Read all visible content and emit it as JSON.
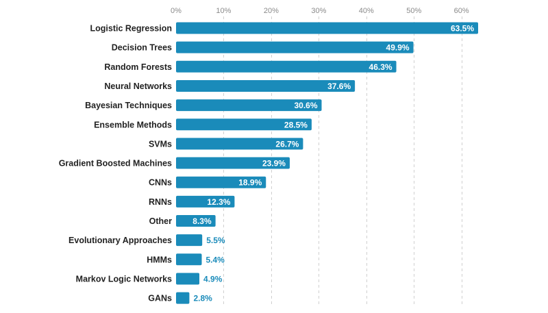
{
  "chart_data": {
    "type": "bar",
    "orientation": "horizontal",
    "title": "",
    "xlabel": "",
    "ylabel": "",
    "xlim": [
      0,
      63.5
    ],
    "grid": true,
    "tick_values": [
      0,
      10,
      20,
      30,
      40,
      50,
      60
    ],
    "tick_labels": [
      "0%",
      "10%",
      "20%",
      "30%",
      "40%",
      "50%",
      "60%"
    ],
    "categories": [
      "Logistic Regression",
      "Decision Trees",
      "Random Forests",
      "Neural Networks",
      "Bayesian Techniques",
      "Ensemble Methods",
      "SVMs",
      "Gradient Boosted Machines",
      "CNNs",
      "RNNs",
      "Other",
      "Evolutionary Approaches",
      "HMMs",
      "Markov Logic Networks",
      "GANs"
    ],
    "values": [
      63.5,
      49.9,
      46.3,
      37.6,
      30.6,
      28.5,
      26.7,
      23.9,
      18.9,
      12.3,
      8.3,
      5.5,
      5.4,
      4.9,
      2.8
    ],
    "value_labels": [
      "63.5%",
      "49.9%",
      "46.3%",
      "37.6%",
      "30.6%",
      "28.5%",
      "26.7%",
      "23.9%",
      "18.9%",
      "12.3%",
      "8.3%",
      "5.5%",
      "5.4%",
      "4.9%",
      "2.8%"
    ],
    "bar_color": "#1a8bba",
    "label_outside_color": "#1a8bba"
  }
}
